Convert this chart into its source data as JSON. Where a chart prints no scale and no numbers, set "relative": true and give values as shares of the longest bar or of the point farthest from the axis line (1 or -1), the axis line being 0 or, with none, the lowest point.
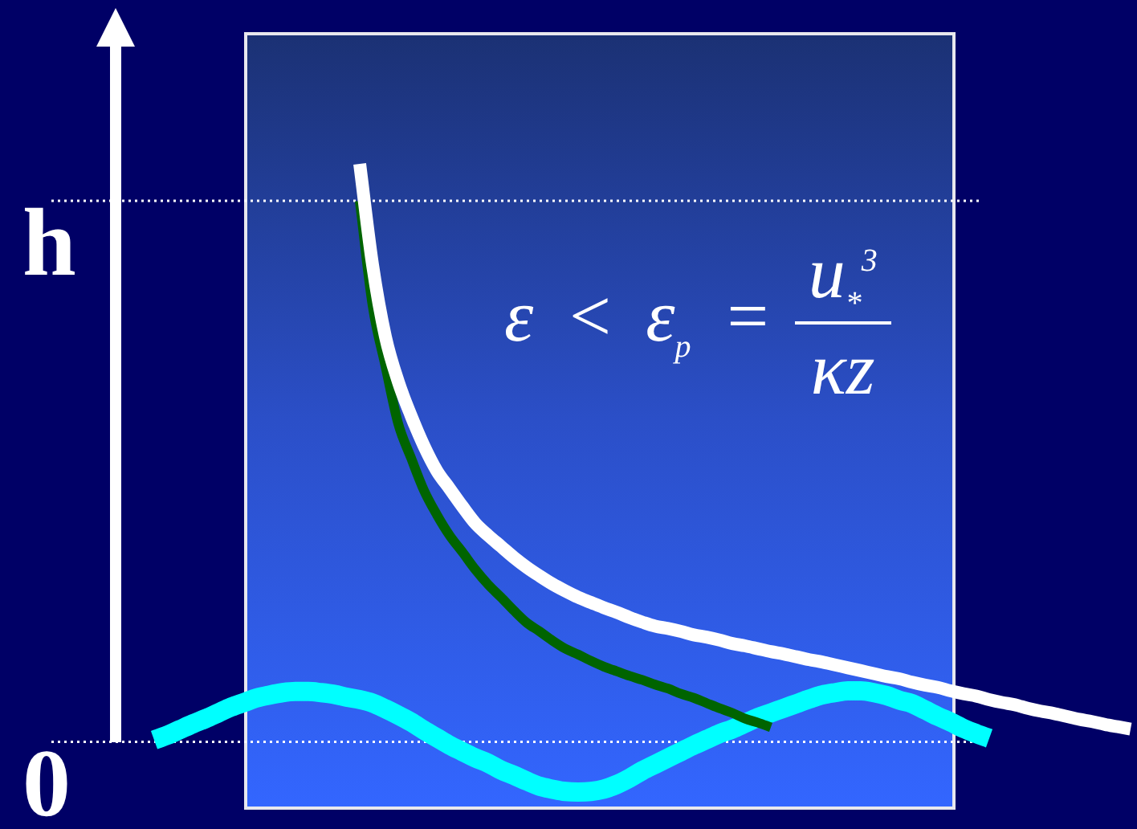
{
  "chart_data": {
    "type": "line",
    "relative": true,
    "categories": [
      null,
      null,
      null,
      null,
      null,
      null,
      null,
      null,
      null,
      null,
      null,
      null,
      null,
      null,
      null,
      null,
      null,
      null,
      null,
      null,
      null,
      null,
      null,
      null,
      null,
      null,
      null,
      null,
      null,
      null,
      null,
      null,
      null,
      null,
      null,
      null,
      null,
      null,
      null,
      null,
      null,
      null,
      null,
      null,
      null,
      null,
      null,
      null,
      null,
      null,
      null,
      null,
      null,
      null,
      null,
      null,
      null,
      null,
      null,
      null,
      null,
      null,
      null,
      null,
      null,
      null,
      null,
      null,
      null,
      null,
      null,
      null,
      null,
      null,
      null,
      null,
      null,
      null,
      null
    ],
    "series": [
      {
        "color": "#ffffff",
        "values": [
          null,
          null,
          null,
          null,
          null,
          null,
          null,
          null,
          null,
          null,
          null,
          null,
          null,
          null,
          null,
          null,
          null,
          null,
          1.0,
          0.825,
          0.701,
          0.623,
          0.564,
          0.512,
          0.469,
          0.438,
          0.407,
          0.378,
          0.357,
          0.338,
          0.319,
          0.302,
          0.287,
          0.273,
          0.261,
          0.25,
          0.241,
          0.232,
          0.224,
          0.215,
          0.207,
          0.2,
          0.196,
          0.191,
          0.185,
          0.181,
          0.176,
          0.17,
          0.166,
          0.161,
          0.156,
          0.152,
          0.147,
          0.142,
          0.138,
          0.133,
          0.128,
          0.123,
          0.118,
          0.113,
          0.109,
          0.103,
          0.098,
          0.094,
          0.088,
          0.083,
          0.079,
          0.073,
          0.068,
          0.064,
          0.058,
          0.053,
          0.049,
          0.044,
          0.039,
          0.035,
          0.03,
          0.026,
          0.022
        ]
      },
      {
        "color": "#006400",
        "values": [
          null,
          null,
          null,
          null,
          null,
          null,
          null,
          null,
          null,
          null,
          null,
          null,
          null,
          null,
          null,
          null,
          null,
          null,
          0.936,
          0.755,
          0.65,
          0.55,
          0.491,
          0.435,
          0.393,
          0.357,
          0.328,
          0.298,
          0.272,
          0.25,
          0.227,
          0.206,
          0.191,
          0.175,
          0.161,
          0.151,
          0.14,
          0.13,
          0.122,
          0.114,
          0.107,
          0.099,
          0.092,
          0.083,
          0.076,
          0.067,
          0.058,
          0.05,
          0.04,
          0.033,
          0.025,
          null,
          null,
          null,
          null,
          null,
          null,
          null,
          null,
          null,
          null,
          null,
          null,
          null,
          null,
          null,
          null,
          null,
          null,
          null,
          null,
          null,
          null,
          null,
          null,
          null,
          null,
          null,
          null
        ]
      },
      {
        "color": "#00ffff",
        "values": [
          null,
          null,
          0.003,
          0.011,
          0.021,
          0.031,
          0.04,
          0.05,
          0.06,
          0.068,
          0.076,
          0.081,
          0.085,
          0.087,
          0.087,
          0.085,
          0.082,
          0.077,
          0.073,
          0.067,
          0.057,
          0.046,
          0.034,
          0.02,
          0.007,
          -0.006,
          -0.017,
          -0.028,
          -0.037,
          -0.049,
          -0.058,
          -0.068,
          -0.077,
          -0.082,
          -0.086,
          -0.087,
          -0.086,
          -0.082,
          -0.074,
          -0.063,
          -0.05,
          -0.039,
          -0.028,
          -0.017,
          -0.006,
          0.004,
          0.014,
          0.022,
          0.032,
          0.042,
          0.05,
          0.058,
          0.066,
          0.074,
          0.081,
          0.085,
          0.088,
          0.088,
          0.085,
          0.08,
          0.072,
          0.066,
          0.055,
          0.044,
          0.034,
          0.023,
          0.014,
          0.006,
          null,
          null,
          null,
          null,
          null,
          null,
          null,
          null,
          null,
          null,
          null
        ]
      }
    ],
    "tick_labels": false,
    "legend": false,
    "marker": "none",
    "line_style": "solid",
    "ref_lines": [
      {
        "axis": "y",
        "value": 0.936,
        "label": "h",
        "line_style": "dotted",
        "color": "#ffffff"
      },
      {
        "axis": "y",
        "value": 0,
        "label": "0",
        "line_style": "dotted",
        "color": "#ffffff"
      }
    ],
    "annotations": [
      "ε < ε$_{p}$ =",
      "u$_{*}$$^{3}$",
      "κz"
    ]
  }
}
